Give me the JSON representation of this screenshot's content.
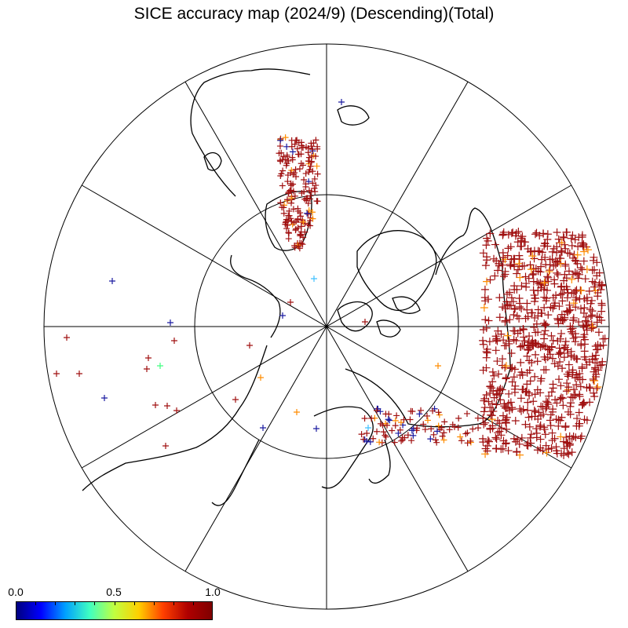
{
  "title": "SICE accuracy map (2024/9) (Descending)(Total)",
  "colorbar": {
    "labels": [
      "0.0",
      "0.5",
      "1.0"
    ],
    "min": 0.0,
    "max": 1.0,
    "colormap": [
      "#00007f",
      "#0000ff",
      "#00a0ff",
      "#40ffc0",
      "#c0ff40",
      "#ffd000",
      "#ff4000",
      "#b00000",
      "#7f0000"
    ]
  },
  "map": {
    "projection": "north-polar-stereographic",
    "grid_meridian_step_deg": 30,
    "grid_parallel_shown": true,
    "marker_symbol": "+"
  },
  "colors": {
    "background": "#ffffff",
    "lines": "#000000",
    "high_accuracy": "#a01010",
    "mid_accuracy": "#ff8c00",
    "low_accuracy": "#1a1aa0"
  }
}
